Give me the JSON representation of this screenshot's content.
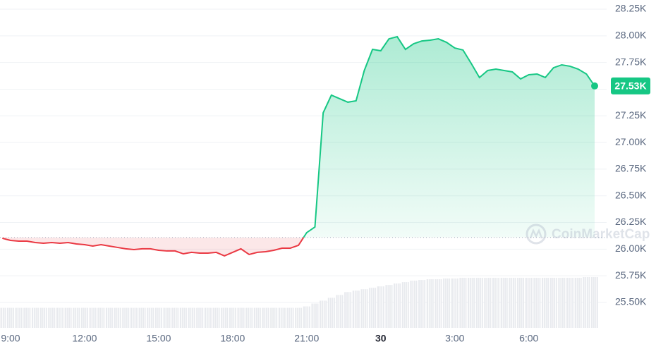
{
  "chart_data": {
    "type": "line",
    "categories": [
      null,
      "9:00",
      null,
      null,
      null,
      null,
      null,
      null,
      null,
      null,
      "12:00",
      null,
      null,
      null,
      null,
      null,
      null,
      null,
      null,
      "15:00",
      null,
      null,
      null,
      null,
      null,
      null,
      null,
      null,
      "18:00",
      null,
      null,
      null,
      null,
      null,
      null,
      null,
      null,
      "21:00",
      null,
      null,
      null,
      null,
      null,
      null,
      null,
      null,
      "30",
      null,
      null,
      null,
      null,
      null,
      null,
      null,
      null,
      "3:00",
      null,
      null,
      null,
      null,
      null,
      null,
      null,
      null,
      "6:00",
      null,
      null,
      null,
      null,
      null,
      null,
      null,
      null
    ],
    "values": [
      26102,
      26082,
      26075,
      26075,
      26062,
      26055,
      26062,
      26055,
      26062,
      26049,
      26042,
      26029,
      26042,
      26029,
      26016,
      26003,
      25996,
      26003,
      26003,
      25989,
      25983,
      25983,
      25956,
      25970,
      25963,
      25963,
      25970,
      25937,
      25970,
      26003,
      25950,
      25970,
      25976,
      25989,
      26009,
      26009,
      26036,
      26155,
      26208,
      27278,
      27444,
      27411,
      27378,
      27391,
      27675,
      27873,
      27860,
      27972,
      27992,
      27873,
      27926,
      27952,
      27959,
      27972,
      27939,
      27886,
      27867,
      27741,
      27609,
      27675,
      27688,
      27675,
      27662,
      27596,
      27635,
      27642,
      27609,
      27701,
      27728,
      27715,
      27688,
      27642,
      27530
    ],
    "value_labels": [
      null,
      null,
      null,
      null,
      null,
      null,
      null,
      null,
      null,
      null,
      null,
      null,
      null,
      null,
      null,
      null,
      null,
      null,
      null,
      null,
      null,
      null,
      null,
      null,
      null,
      null,
      null,
      null,
      null,
      null,
      null,
      null,
      null,
      null,
      null,
      null,
      null,
      null,
      null,
      null,
      null,
      null,
      null,
      null,
      null,
      null,
      null,
      null,
      null,
      null,
      null,
      null,
      null,
      null,
      null,
      null,
      null,
      null,
      null,
      null,
      null,
      null,
      null,
      null,
      null,
      null,
      null,
      null,
      null,
      null,
      null,
      null,
      "27.53K"
    ],
    "volume": [
      28,
      28,
      28,
      28,
      28,
      28,
      28,
      28,
      28,
      28,
      28,
      28,
      28,
      28,
      28,
      28,
      28,
      28,
      28,
      28,
      28,
      28,
      28,
      28,
      28,
      28,
      28,
      28,
      28,
      28,
      28,
      28,
      28,
      28,
      28,
      28,
      28,
      30,
      34,
      38,
      42,
      46,
      50,
      52,
      54,
      56,
      58,
      60,
      62,
      64,
      66,
      67,
      68,
      68,
      69,
      69,
      70,
      70,
      70,
      70,
      70,
      70,
      70,
      70,
      70,
      70,
      70,
      70,
      70,
      70,
      70,
      71,
      71
    ],
    "reference_line": 26110,
    "up_color": "#16c784",
    "down_color": "#ea3943",
    "ylim": [
      25262,
      28336
    ],
    "yticks": [
      {
        "value": 25500,
        "label": "25.50K"
      },
      {
        "value": 25750,
        "label": "25.75K"
      },
      {
        "value": 26000,
        "label": "26.00K"
      },
      {
        "value": 26250,
        "label": "26.25K"
      },
      {
        "value": 26500,
        "label": "26.50K"
      },
      {
        "value": 26750,
        "label": "26.75K"
      },
      {
        "value": 27000,
        "label": "27.00K"
      },
      {
        "value": 27250,
        "label": "27.25K"
      },
      {
        "value": 27500,
        "label": "27.50K"
      },
      {
        "value": 27750,
        "label": "27.75K"
      },
      {
        "value": 28000,
        "label": "28.00K"
      },
      {
        "value": 28250,
        "label": "28.25K"
      }
    ],
    "grid": true,
    "watermark": "CoinMarketCap"
  }
}
